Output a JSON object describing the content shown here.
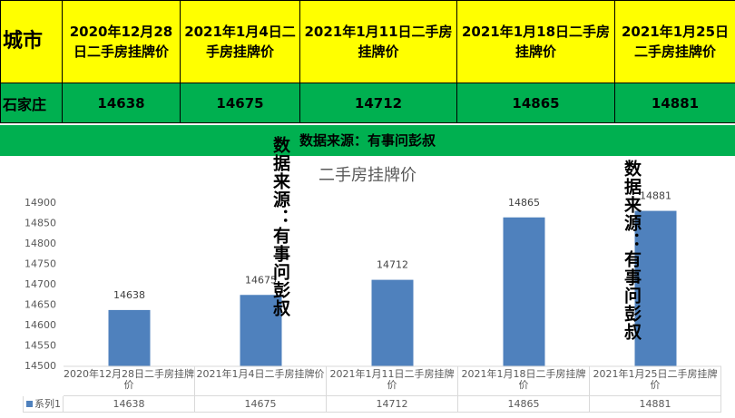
{
  "table": {
    "header": [
      "城市",
      "2020年12月28日二手房挂牌价",
      "2021年1月4日二手房挂牌价",
      "2021年1月11日二手房挂牌价",
      "2021年1月18日二手房挂牌价",
      "2021年1月25日二手房挂牌价"
    ],
    "rows": [
      [
        "石家庄",
        14638,
        14675,
        14712,
        14865,
        14881
      ]
    ]
  },
  "banner": "数据来源：有事问彭叔",
  "chart_data": {
    "type": "bar",
    "title": "二手房挂牌价",
    "categories": [
      "2020年12月28日二手房挂牌价",
      "2021年1月4日二手房挂牌价",
      "2021年1月11日二手房挂牌价",
      "2021年1月18日二手房挂牌价",
      "2021年1月25日二手房挂牌价"
    ],
    "series": [
      {
        "name": "系列1",
        "color": "#4f81bd",
        "values": [
          14638,
          14675,
          14712,
          14865,
          14881
        ]
      }
    ],
    "ylim": [
      14500,
      14900
    ],
    "yticks": [
      14500,
      14550,
      14600,
      14650,
      14700,
      14750,
      14800,
      14850,
      14900
    ],
    "grid": false,
    "annotations": [
      "数据来源：有事问彭叔",
      "数据来源：有事问彭叔"
    ]
  }
}
